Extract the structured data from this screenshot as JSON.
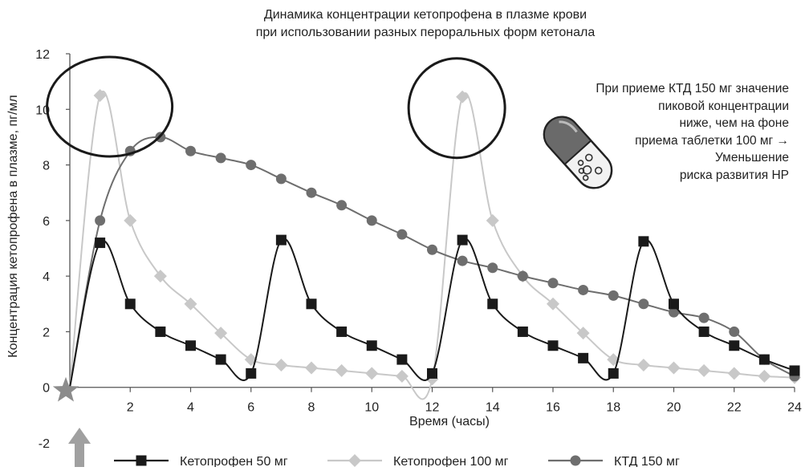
{
  "chart_data": {
    "type": "line",
    "title_lines": [
      "Динамика концентрации кетопрофена в плазме крови",
      "при использовании разных пероральных форм кетонала"
    ],
    "xlabel": "Время (часы)",
    "ylabel": "Концентрация кетопрофена в плазме, пг/мл",
    "xlim": [
      0,
      24
    ],
    "ylim": [
      -2,
      12
    ],
    "x_ticks": [
      2,
      4,
      6,
      8,
      10,
      12,
      14,
      16,
      18,
      20,
      22,
      24
    ],
    "y_ticks": [
      12,
      10,
      8,
      6,
      4,
      2,
      0,
      -2
    ],
    "grid": false,
    "legend_position": "bottom",
    "series": [
      {
        "name": "Кетопрофен 50 мг",
        "color": "#1a1a1a",
        "marker": "square",
        "points": [
          [
            0,
            0
          ],
          [
            1,
            5.2
          ],
          [
            2,
            3.0
          ],
          [
            3,
            2.0
          ],
          [
            4,
            1.5
          ],
          [
            5,
            1.0
          ],
          [
            6,
            0.5
          ],
          [
            7,
            5.3
          ],
          [
            8,
            3.0
          ],
          [
            9,
            2.0
          ],
          [
            10,
            1.5
          ],
          [
            11,
            1.0
          ],
          [
            12,
            0.5
          ],
          [
            13,
            5.3
          ],
          [
            14,
            3.0
          ],
          [
            15,
            2.0
          ],
          [
            16,
            1.5
          ],
          [
            17,
            1.05
          ],
          [
            18,
            0.5
          ],
          [
            19,
            5.25
          ],
          [
            20,
            3.0
          ],
          [
            21,
            2.0
          ],
          [
            22,
            1.5
          ],
          [
            23,
            1.0
          ],
          [
            24,
            0.6
          ]
        ]
      },
      {
        "name": "Кетопрофен 100 мг",
        "color": "#c8c8c8",
        "marker": "diamond",
        "points": [
          [
            0,
            0
          ],
          [
            1,
            10.5
          ],
          [
            2,
            6.0
          ],
          [
            3,
            4.0
          ],
          [
            4,
            3.0
          ],
          [
            5,
            1.95
          ],
          [
            6,
            1.0
          ],
          [
            7,
            0.8
          ],
          [
            8,
            0.7
          ],
          [
            9,
            0.6
          ],
          [
            10,
            0.5
          ],
          [
            11,
            0.4
          ],
          [
            12,
            0.3
          ],
          [
            13,
            10.45
          ],
          [
            14,
            6.0
          ],
          [
            15,
            4.0
          ],
          [
            16,
            3.0
          ],
          [
            17,
            1.95
          ],
          [
            18,
            1.0
          ],
          [
            19,
            0.8
          ],
          [
            20,
            0.7
          ],
          [
            21,
            0.6
          ],
          [
            22,
            0.5
          ],
          [
            23,
            0.4
          ],
          [
            24,
            0.35
          ]
        ]
      },
      {
        "name": "КТД 150 мг",
        "color": "#6e6e6e",
        "marker": "circle",
        "points": [
          [
            0,
            0
          ],
          [
            1,
            6.0
          ],
          [
            2,
            8.5
          ],
          [
            3,
            9.0
          ],
          [
            4,
            8.5
          ],
          [
            5,
            8.25
          ],
          [
            6,
            8.0
          ],
          [
            7,
            7.5
          ],
          [
            8,
            7.0
          ],
          [
            9,
            6.55
          ],
          [
            10,
            6.0
          ],
          [
            11,
            5.5
          ],
          [
            12,
            4.95
          ],
          [
            13,
            4.55
          ],
          [
            14,
            4.3
          ],
          [
            15,
            4.0
          ],
          [
            16,
            3.75
          ],
          [
            17,
            3.5
          ],
          [
            18,
            3.3
          ],
          [
            19,
            3.0
          ],
          [
            20,
            2.7
          ],
          [
            21,
            2.5
          ],
          [
            22,
            2.0
          ],
          [
            23,
            1.0
          ],
          [
            24,
            0.4
          ]
        ]
      }
    ],
    "annotation_lines": [
      "При приеме КТД 150 мг значение",
      "пиковой концентрации",
      "ниже, чем на фоне",
      "приема таблетки 100 мг →",
      "Уменьшение",
      "риска развития НР"
    ],
    "highlight_circles_at": [
      [
        1,
        10.5
      ],
      [
        13,
        10.45
      ]
    ],
    "origin_star_at": [
      0,
      0
    ],
    "arrow_color": "#a0a0a0",
    "star_color": "#8c8c8c",
    "circle_color": "#1a1a1a"
  }
}
